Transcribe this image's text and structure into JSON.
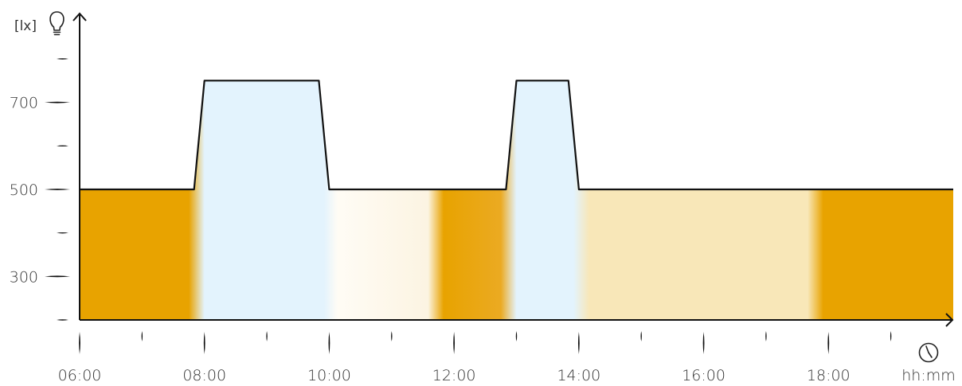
{
  "chart_data": {
    "type": "area",
    "title": "",
    "xlabel": "hh:mm",
    "ylabel": "[lx]",
    "x_unit_icon": "clock-icon",
    "y_unit_icon": "light-bulb-icon",
    "xlim": [
      "06:00",
      "20:00"
    ],
    "ylim": [
      200,
      850
    ],
    "x_ticks": [
      "06:00",
      "08:00",
      "10:00",
      "12:00",
      "14:00",
      "16:00",
      "18:00"
    ],
    "y_ticks": [
      300,
      500,
      700
    ],
    "grid": false,
    "legend": "none",
    "series": [
      {
        "x": [
          "06:00",
          "07:50",
          "08:00",
          "09:50",
          "10:00",
          "12:50",
          "13:00",
          "13:50",
          "14:00",
          "20:00"
        ],
        "values": [
          500,
          500,
          750,
          750,
          500,
          500,
          750,
          750,
          500,
          500
        ]
      }
    ],
    "fill_gradient": [
      {
        "time": "06:00",
        "color": "#e8a300"
      },
      {
        "time": "07:45",
        "color": "#e8a300"
      },
      {
        "time": "08:00",
        "color": "#e3f3fd"
      },
      {
        "time": "09:55",
        "color": "#e3f3fd"
      },
      {
        "time": "10:08",
        "color": "#fffcf5"
      },
      {
        "time": "11:35",
        "color": "#fcf4e2"
      },
      {
        "time": "11:50",
        "color": "#e8a300"
      },
      {
        "time": "12:45",
        "color": "#ebaa22"
      },
      {
        "time": "13:00",
        "color": "#e3f3fd"
      },
      {
        "time": "13:55",
        "color": "#e3f3fd"
      },
      {
        "time": "14:10",
        "color": "#f8e7b8"
      },
      {
        "time": "17:40",
        "color": "#f8e7b8"
      },
      {
        "time": "17:55",
        "color": "#e8a300"
      },
      {
        "time": "20:00",
        "color": "#e8a300"
      }
    ],
    "colors": {
      "line": "#111111",
      "axis": "#111111",
      "text": "#333333"
    }
  }
}
